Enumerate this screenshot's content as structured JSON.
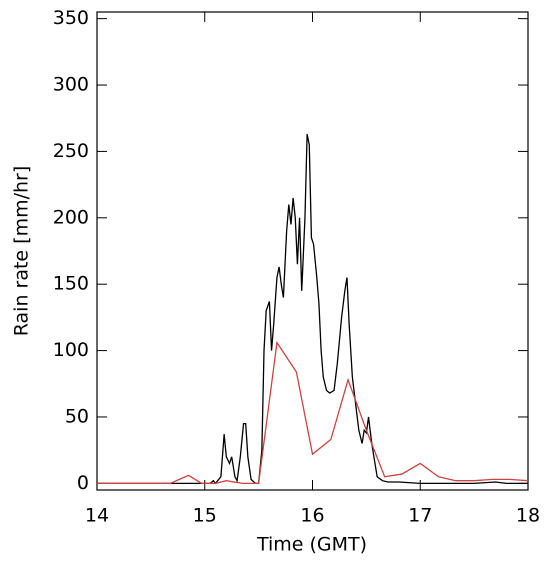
{
  "chart_data": {
    "type": "line",
    "xlabel": "Time (GMT)",
    "ylabel": "Rain rate [mm/hr]",
    "xlim": [
      14,
      18
    ],
    "xticks": [
      14,
      15,
      16,
      17,
      18
    ],
    "ylim": [
      -5,
      355
    ],
    "yticks": [
      0,
      50,
      100,
      150,
      200,
      250,
      300,
      350
    ],
    "series": [
      {
        "color": "#000000",
        "x": [
          14.0,
          14.5,
          15.0,
          15.05,
          15.08,
          15.1,
          15.15,
          15.18,
          15.2,
          15.23,
          15.25,
          15.28,
          15.3,
          15.33,
          15.36,
          15.38,
          15.4,
          15.43,
          15.47,
          15.5,
          15.53,
          15.55,
          15.57,
          15.6,
          15.62,
          15.64,
          15.67,
          15.69,
          15.71,
          15.73,
          15.76,
          15.78,
          15.8,
          15.82,
          15.84,
          15.86,
          15.88,
          15.9,
          15.93,
          15.95,
          15.97,
          15.99,
          16.01,
          16.04,
          16.06,
          16.08,
          16.1,
          16.13,
          16.16,
          16.2,
          16.23,
          16.27,
          16.3,
          16.32,
          16.34,
          16.37,
          16.4,
          16.43,
          16.46,
          16.48,
          16.5,
          16.52,
          16.55,
          16.58,
          16.6,
          16.65,
          16.7,
          16.8,
          17.0,
          17.5,
          17.7,
          17.8,
          18.0
        ],
        "values": [
          0,
          0,
          0,
          0,
          2,
          0,
          5,
          37,
          20,
          15,
          20,
          5,
          2,
          20,
          45,
          45,
          20,
          3,
          0,
          0,
          25,
          100,
          130,
          137,
          100,
          120,
          155,
          163,
          150,
          140,
          190,
          210,
          195,
          215,
          200,
          165,
          200,
          145,
          200,
          263,
          255,
          185,
          180,
          155,
          135,
          100,
          80,
          70,
          68,
          70,
          90,
          125,
          145,
          155,
          120,
          80,
          60,
          40,
          30,
          40,
          38,
          50,
          30,
          15,
          5,
          2,
          1,
          1,
          0,
          0,
          1,
          0,
          0
        ]
      },
      {
        "color": "#cc4444",
        "x": [
          14.0,
          14.55,
          14.68,
          14.85,
          14.97,
          15.1,
          15.2,
          15.35,
          15.5,
          15.67,
          15.85,
          16.0,
          16.17,
          16.33,
          16.5,
          16.67,
          16.83,
          17.0,
          17.17,
          17.33,
          17.5,
          17.67,
          17.83,
          18.0
        ],
        "values": [
          0,
          0,
          0,
          6,
          0,
          0,
          2,
          0,
          0,
          106,
          84,
          22,
          33,
          78,
          40,
          5,
          7,
          15,
          5,
          2,
          2,
          3,
          3,
          2
        ]
      }
    ]
  }
}
